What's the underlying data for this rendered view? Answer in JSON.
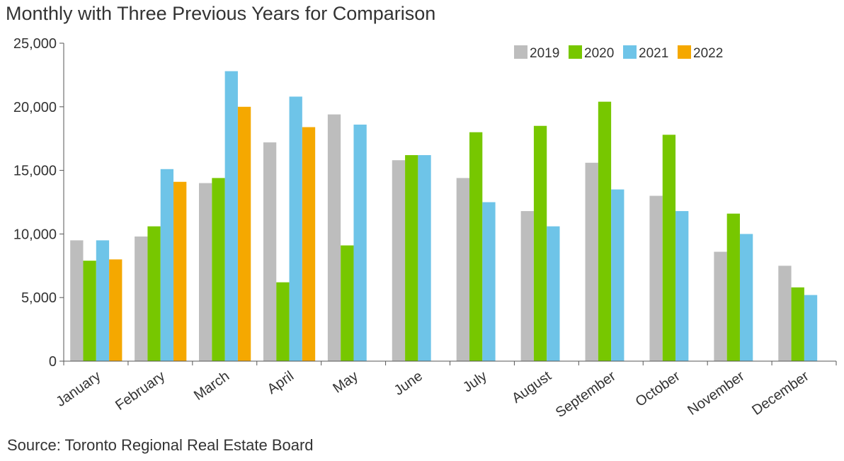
{
  "title": "Monthly with Three Previous Years for Comparison",
  "source": "Source: Toronto Regional Real Estate Board",
  "chart_data": {
    "type": "bar",
    "categories": [
      "January",
      "February",
      "March",
      "April",
      "May",
      "June",
      "July",
      "August",
      "September",
      "October",
      "November",
      "December"
    ],
    "series": [
      {
        "name": "2019",
        "color": "#bdbdbd",
        "values": [
          9500,
          9800,
          14000,
          17200,
          19400,
          15800,
          14400,
          11800,
          15600,
          13000,
          8600,
          7500
        ]
      },
      {
        "name": "2020",
        "color": "#77c700",
        "values": [
          7900,
          10600,
          14400,
          6200,
          9100,
          16200,
          18000,
          18500,
          20400,
          17800,
          11600,
          5800
        ]
      },
      {
        "name": "2021",
        "color": "#6ec4e8",
        "values": [
          9500,
          15100,
          22800,
          20800,
          18600,
          16200,
          12500,
          10600,
          13500,
          11800,
          10000,
          5200
        ]
      },
      {
        "name": "2022",
        "color": "#f5a800",
        "values": [
          8000,
          14100,
          20000,
          18400,
          null,
          null,
          null,
          null,
          null,
          null,
          null,
          null
        ]
      }
    ],
    "ylim": [
      0,
      25000
    ],
    "yticks": [
      0,
      5000,
      10000,
      15000,
      20000,
      25000
    ],
    "ytick_labels": [
      "0",
      "5,000",
      "10,000",
      "15,000",
      "20,000",
      "25,000"
    ],
    "legend_position": "top-right",
    "grid": false
  }
}
